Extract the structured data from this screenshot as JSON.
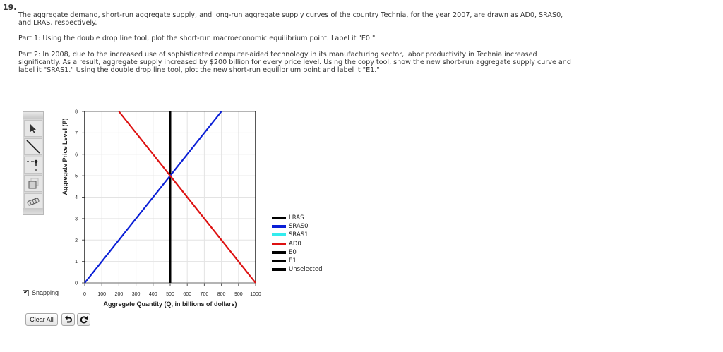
{
  "question": {
    "number": "19.",
    "intro": "The aggregate demand, short-run aggregate supply, and long-run aggregate supply curves of the country Technia, for the year 2007, are drawn as AD0, SRAS0, and LRAS, respectively.",
    "part1": "Part 1: Using the double drop line tool, plot the short-run macroeconomic equilibrium point. Label it \"E0.\"",
    "part2": "Part 2: In 2008, due to the increased use of sophisticated computer-aided technology in its manufacturing sector, labor productivity in Technia increased significantly. As a result, aggregate supply increased by $200 billion for every price level. Using the copy tool, show the new short-run aggregate supply curve and label it \"SRAS1.\" Using the double drop line tool, plot the new short-run equilibrium point and label it \"E1.\""
  },
  "toolbar": {
    "tools": [
      {
        "name": "select-tool",
        "icon": "arrow-pointer-icon"
      },
      {
        "name": "line-tool",
        "icon": "line-icon"
      },
      {
        "name": "double-drop-line-tool",
        "icon": "drop-line-icon"
      },
      {
        "name": "copy-tool",
        "icon": "copy-icon"
      },
      {
        "name": "eraser-tool",
        "icon": "eraser-icon"
      }
    ]
  },
  "controls": {
    "snapping_label": "Snapping",
    "snapping_checked": true,
    "clear_all_label": "Clear All",
    "undo_icon": "undo-icon",
    "redo_icon": "redo-icon"
  },
  "chart_data": {
    "type": "line",
    "title": "",
    "xlabel": "Aggregate Quantity (Q, in billions of dollars)",
    "ylabel": "Aggregate Price Level (P)",
    "xlim": [
      0,
      1000
    ],
    "ylim": [
      0,
      8
    ],
    "x_ticks": [
      0,
      100,
      200,
      300,
      400,
      500,
      600,
      700,
      800,
      900,
      1000
    ],
    "y_ticks": [
      0,
      1,
      2,
      3,
      4,
      5,
      6,
      7,
      8
    ],
    "grid": true,
    "series": [
      {
        "name": "LRAS",
        "color": "#000000",
        "points": [
          [
            500,
            0
          ],
          [
            500,
            8
          ]
        ]
      },
      {
        "name": "SRAS0",
        "color": "#0a1fd6",
        "points": [
          [
            0,
            0
          ],
          [
            800,
            8
          ]
        ]
      },
      {
        "name": "AD0",
        "color": "#dd1111",
        "points": [
          [
            200,
            8
          ],
          [
            1000,
            0
          ]
        ]
      }
    ],
    "legend": {
      "position": "right",
      "entries": [
        {
          "label": "LRAS",
          "color": "#000000"
        },
        {
          "label": "SRAS0",
          "color": "#0a1fd6"
        },
        {
          "label": "SRAS1",
          "color": "#33ecee"
        },
        {
          "label": "AD0",
          "color": "#dd1111"
        },
        {
          "label": "E0",
          "color": "#000000"
        },
        {
          "label": "E1",
          "color": "#000000"
        },
        {
          "label": "Unselected",
          "color": "#000000"
        }
      ]
    }
  }
}
